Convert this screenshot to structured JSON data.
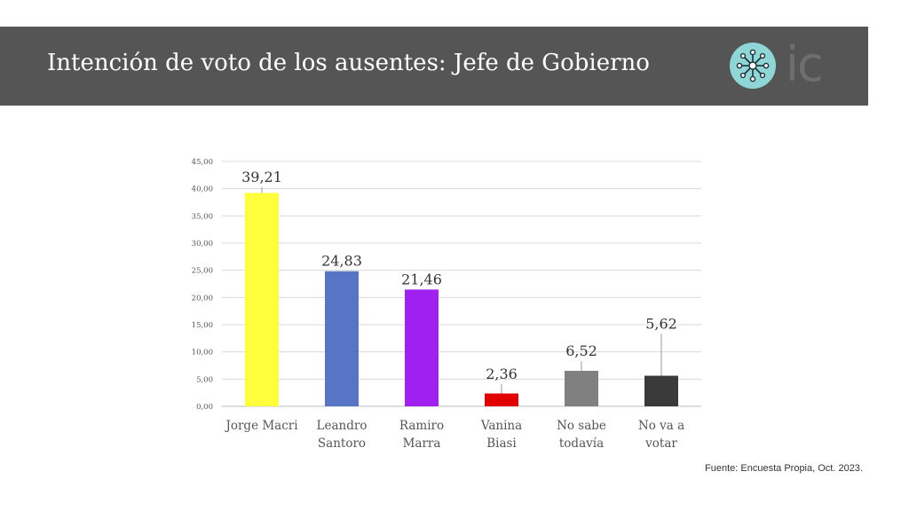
{
  "header": {
    "title": "Intención de voto de los ausentes: Jefe de Gobierno",
    "logo_text": "ic",
    "logo_icon": "network-node-icon",
    "banner_color": "#555555",
    "logo_circle_color": "#8fd6d6"
  },
  "chart_data": {
    "type": "bar",
    "categories": [
      "Jorge Macri",
      "Leandro Santoro",
      "Ramiro Marra",
      "Vanina Biasi",
      "No sabe todavía",
      "No va a votar"
    ],
    "category_lines": [
      [
        "Jorge Macri"
      ],
      [
        "Leandro",
        "Santoro"
      ],
      [
        "Ramiro",
        "Marra"
      ],
      [
        "Vanina",
        "Biasi"
      ],
      [
        "No sabe",
        "todavía"
      ],
      [
        "No va a",
        "votar"
      ]
    ],
    "values": [
      39.21,
      24.83,
      21.46,
      2.36,
      6.52,
      5.62
    ],
    "value_labels": [
      "39,21",
      "24,83",
      "21,46",
      "2,36",
      "6,52",
      "5,62"
    ],
    "error_upper": [
      40.3,
      24.83,
      21.46,
      4.1,
      8.3,
      13.3
    ],
    "colors": [
      "#ffff3c",
      "#5874c4",
      "#a020f0",
      "#e00000",
      "#808080",
      "#3a3a3a"
    ],
    "ylim": [
      0,
      45
    ],
    "yticks": [
      0,
      5,
      10,
      15,
      20,
      25,
      30,
      35,
      40,
      45
    ],
    "ytick_labels": [
      "0,00",
      "5,00",
      "10,00",
      "15,00",
      "20,00",
      "25,00",
      "30,00",
      "35,00",
      "40,00",
      "45,00"
    ],
    "grid": true,
    "legend": "none"
  },
  "footer": {
    "source": "Fuente: Encuesta Propia, Oct. 2023."
  }
}
